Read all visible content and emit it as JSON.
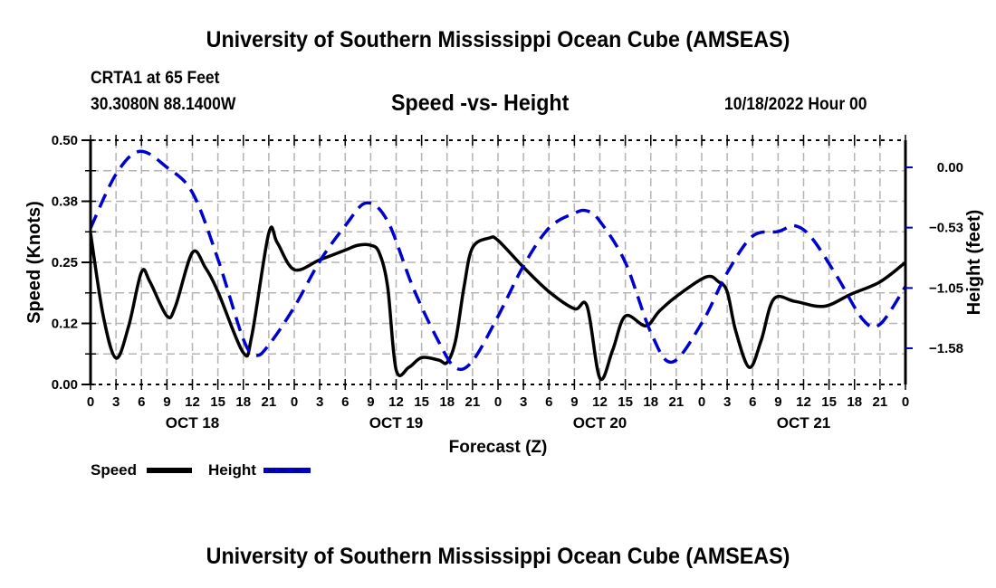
{
  "header": {
    "title": "University of Southern Mississippi Ocean Cube (AMSEAS)",
    "station": "CRTA1 at 65 Feet",
    "coords": "30.3080N  88.1400W",
    "chart_title": "Speed -vs- Height",
    "datetime": "10/18/2022 Hour 00"
  },
  "footer": {
    "title": "University of Southern Mississippi Ocean Cube (AMSEAS)"
  },
  "legend": {
    "items": [
      {
        "label": "Speed",
        "color": "#000000",
        "style": "solid"
      },
      {
        "label": "Height",
        "color": "#0000cc",
        "style": "dashed"
      }
    ]
  },
  "chart_data": {
    "type": "line",
    "title": "Speed -vs- Height",
    "xlabel": "Forecast (Z)",
    "ylabel": "Speed (Knots)",
    "y2label": "Height (feet)",
    "xlim": [
      0,
      96
    ],
    "ylim": [
      0,
      0.5
    ],
    "y2lim": [
      -1.895,
      0.237
    ],
    "grid": true,
    "legend_position": "bottom-left",
    "x_tick_labels": [
      "0",
      "3",
      "6",
      "9",
      "12",
      "15",
      "18",
      "21",
      "0",
      "3",
      "6",
      "9",
      "12",
      "15",
      "18",
      "21",
      "0",
      "3",
      "6",
      "9",
      "12",
      "15",
      "18",
      "21",
      "0",
      "3",
      "6",
      "9",
      "12",
      "15",
      "18",
      "21",
      "0"
    ],
    "day_labels": [
      {
        "label": "OCT 18",
        "hour": 12
      },
      {
        "label": "OCT 19",
        "hour": 36
      },
      {
        "label": "OCT 20",
        "hour": 60
      },
      {
        "label": "OCT 21",
        "hour": 84
      }
    ],
    "y_ticks": [
      {
        "value": 0.0,
        "label": "0.00"
      },
      {
        "value": 0.125,
        "label": "0.12"
      },
      {
        "value": 0.25,
        "label": "0.25"
      },
      {
        "value": 0.375,
        "label": "0.38"
      },
      {
        "value": 0.5,
        "label": "0.50"
      }
    ],
    "y2_ticks": [
      {
        "value": 0.0,
        "label": "0.00"
      },
      {
        "value": -0.526,
        "label": "−0.53"
      },
      {
        "value": -1.053,
        "label": "−1.05"
      },
      {
        "value": -1.579,
        "label": "−1.58"
      }
    ],
    "series": [
      {
        "name": "Speed",
        "axis": "left",
        "color": "#000000",
        "x": [
          0,
          1.5,
          3,
          4.5,
          6,
          7,
          9,
          10,
          12,
          13.5,
          15,
          18,
          19,
          21,
          22,
          24,
          27,
          30,
          31.5,
          33,
          34,
          35,
          36,
          37.5,
          39,
          41,
          42,
          43,
          44,
          45,
          47,
          48,
          51,
          54,
          57,
          58.5,
          60,
          61.5,
          63,
          65.4,
          67,
          69,
          72.5,
          74,
          75,
          76,
          77.6,
          79,
          80.5,
          83,
          86.4,
          89.6,
          93,
          96
        ],
        "values": [
          0.31,
          0.14,
          0.054,
          0.12,
          0.23,
          0.21,
          0.14,
          0.16,
          0.27,
          0.24,
          0.19,
          0.065,
          0.1,
          0.31,
          0.29,
          0.235,
          0.255,
          0.275,
          0.285,
          0.285,
          0.27,
          0.2,
          0.03,
          0.035,
          0.055,
          0.05,
          0.045,
          0.09,
          0.2,
          0.28,
          0.3,
          0.295,
          0.24,
          0.19,
          0.155,
          0.16,
          0.013,
          0.07,
          0.14,
          0.12,
          0.15,
          0.18,
          0.22,
          0.21,
          0.19,
          0.11,
          0.035,
          0.09,
          0.175,
          0.17,
          0.16,
          0.185,
          0.21,
          0.25
        ]
      },
      {
        "name": "Height",
        "axis": "right",
        "color": "#0000cc",
        "x": [
          0,
          3,
          5.8,
          9,
          12,
          15,
          18,
          19.5,
          21,
          24,
          27,
          30,
          32.5,
          35,
          38,
          41,
          43,
          45,
          48,
          51,
          54,
          57,
          58.5,
          60,
          63,
          66,
          68.5,
          72,
          75,
          78,
          81,
          83,
          85,
          88,
          91,
          93,
          96
        ],
        "values": [
          -0.53,
          -0.06,
          0.14,
          0.0,
          -0.22,
          -0.8,
          -1.5,
          -1.64,
          -1.55,
          -1.22,
          -0.82,
          -0.51,
          -0.31,
          -0.47,
          -1.05,
          -1.52,
          -1.75,
          -1.69,
          -1.3,
          -0.86,
          -0.53,
          -0.4,
          -0.38,
          -0.47,
          -0.83,
          -1.44,
          -1.7,
          -1.36,
          -0.92,
          -0.6,
          -0.56,
          -0.51,
          -0.62,
          -0.96,
          -1.33,
          -1.37,
          -1.04
        ]
      }
    ]
  }
}
